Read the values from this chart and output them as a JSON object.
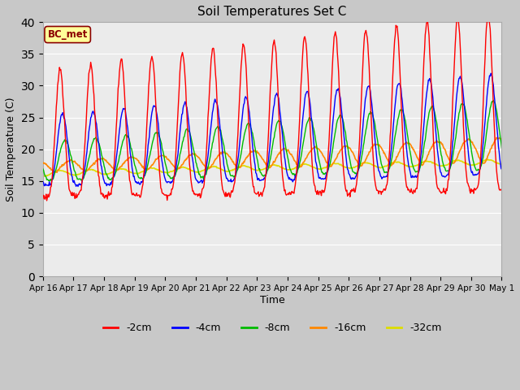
{
  "title": "Soil Temperatures Set C",
  "xlabel": "Time",
  "ylabel": "Soil Temperature (C)",
  "ylim": [
    0,
    40
  ],
  "yticks": [
    0,
    5,
    10,
    15,
    20,
    25,
    30,
    35,
    40
  ],
  "legend_label": "BC_met",
  "series_colors": {
    "-2cm": "#ff0000",
    "-4cm": "#0000ff",
    "-8cm": "#00bb00",
    "-16cm": "#ff8800",
    "-32cm": "#dddd00"
  },
  "background_color": "#ebebeb",
  "grid_color": "#ffffff",
  "fig_bg": "#c8c8c8",
  "annotation_bg": "#ffff99",
  "annotation_border": "#8b0000",
  "annotation_text_color": "#8b0000",
  "tick_labels": [
    "Apr 16",
    "Apr 17",
    "Apr 18",
    "Apr 19",
    "Apr 20",
    "Apr 21",
    "Apr 22",
    "Apr 23",
    "Apr 24",
    "Apr 25",
    "Apr 26",
    "Apr 27",
    "Apr 28",
    "Apr 29",
    "Apr 30",
    "May 1"
  ]
}
